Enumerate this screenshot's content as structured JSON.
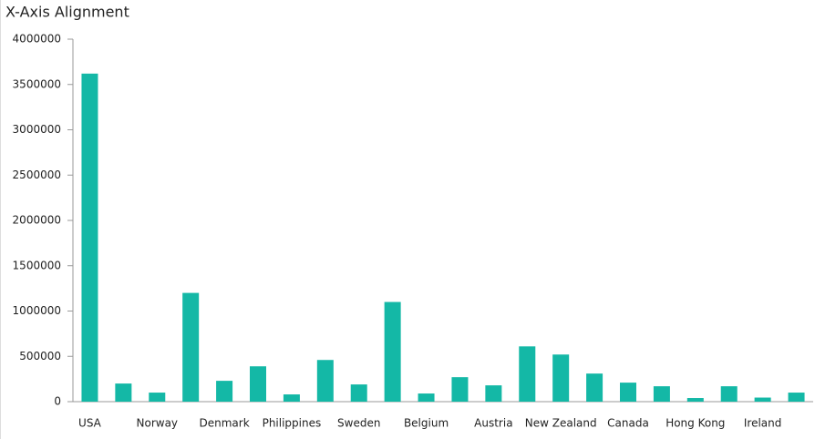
{
  "chart_data": {
    "type": "bar",
    "title": "X-Axis Alignment",
    "categories": [
      "USA",
      null,
      "Norway",
      null,
      "Denmark",
      null,
      "Philippines",
      null,
      "Sweden",
      null,
      "Belgium",
      null,
      "Austria",
      null,
      "New Zealand",
      null,
      "Canada",
      null,
      "Hong Kong",
      null,
      "Ireland",
      null
    ],
    "values": [
      3620000,
      200000,
      100000,
      1200000,
      230000,
      390000,
      80000,
      460000,
      190000,
      1100000,
      90000,
      270000,
      180000,
      610000,
      520000,
      310000,
      210000,
      170000,
      40000,
      170000,
      45000,
      100000
    ],
    "color": "#14b8a6",
    "ylim": [
      0,
      4000000
    ],
    "yticks": [
      0,
      500000,
      1000000,
      1500000,
      2000000,
      2500000,
      3000000,
      3500000,
      4000000
    ],
    "grid": false
  }
}
